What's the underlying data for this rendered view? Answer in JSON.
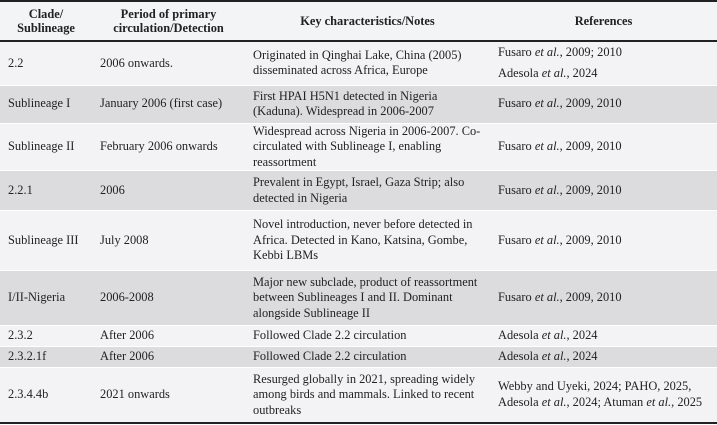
{
  "table": {
    "headers": [
      "Clade/ Sublineage",
      "Period of primary circulation/Detection",
      "Key characteristics/Notes",
      "References"
    ],
    "rows": [
      {
        "clade": "2.2",
        "period": "2006 onwards.",
        "notes": "Originated in Qinghai Lake, China (2005) disseminated across Africa, Europe",
        "refs": [
          [
            {
              "t": "Fusaro "
            },
            {
              "t": "et al.",
              "i": true
            },
            {
              "t": ", 2009; 2010"
            }
          ],
          [
            {
              "t": "Adesola "
            },
            {
              "t": "et al.",
              "i": true
            },
            {
              "t": ", 2024"
            }
          ]
        ]
      },
      {
        "clade": "Sublineage I",
        "period": "January 2006 (first case)",
        "notes": "First HPAI H5N1 detected in Nigeria (Kaduna). Widespread in 2006-2007",
        "refs": [
          [
            {
              "t": "Fusaro "
            },
            {
              "t": "et al.",
              "i": true
            },
            {
              "t": ", 2009, 2010"
            }
          ]
        ]
      },
      {
        "clade": "Sublineage II",
        "period": "February 2006 onwards",
        "notes": "Widespread across Nigeria in 2006-2007. Co-circulated with Sublineage I, enabling reassortment",
        "refs": [
          [
            {
              "t": "Fusaro "
            },
            {
              "t": "et al.",
              "i": true
            },
            {
              "t": ", 2009, 2010"
            }
          ]
        ]
      },
      {
        "clade": "2.2.1",
        "period": "2006",
        "notes": "Prevalent in Egypt, Israel, Gaza Strip; also detected in Nigeria",
        "refs": [
          [
            {
              "t": "Fusaro "
            },
            {
              "t": "et al.",
              "i": true
            },
            {
              "t": ", 2009, 2010"
            }
          ]
        ]
      },
      {
        "clade": "Sublineage III",
        "period": "July 2008",
        "notes": "Novel introduction, never before detected in Africa. Detected in Kano, Katsina, Gombe, Kebbi LBMs",
        "refs": [
          [
            {
              "t": "Fusaro "
            },
            {
              "t": "et al.",
              "i": true
            },
            {
              "t": ", 2009, 2010"
            }
          ]
        ]
      },
      {
        "clade": "I/II-Nigeria",
        "period": "2006-2008",
        "notes": "Major new subclade, product of reassortment between Sublineages I and II. Dominant alongside Sublineage II",
        "refs": [
          [
            {
              "t": "Fusaro "
            },
            {
              "t": "et al.",
              "i": true
            },
            {
              "t": ", 2009, 2010"
            }
          ]
        ]
      },
      {
        "clade": "2.3.2",
        "period": "After 2006",
        "notes": "Followed Clade 2.2 circulation",
        "refs": [
          [
            {
              "t": "Adesola "
            },
            {
              "t": "et al.",
              "i": true
            },
            {
              "t": ", 2024"
            }
          ]
        ]
      },
      {
        "clade": "2.3.2.1f",
        "period": "After 2006",
        "notes": "Followed Clade 2.2 circulation",
        "refs": [
          [
            {
              "t": "Adesola "
            },
            {
              "t": "et al.",
              "i": true
            },
            {
              "t": ", 2024"
            }
          ]
        ]
      },
      {
        "clade": "2.3.4.4b",
        "period": "2021 onwards",
        "notes": "Resurged globally in 2021, spreading widely among birds and mammals. Linked to recent outbreaks",
        "refs": [
          [
            {
              "t": "Webby and Uyeki, 2024; PAHO, 2025, Adesola "
            },
            {
              "t": "et al.",
              "i": true
            },
            {
              "t": ", 2024; Atuman "
            },
            {
              "t": "et al.",
              "i": true
            },
            {
              "t": ", 2025"
            }
          ]
        ]
      }
    ]
  }
}
